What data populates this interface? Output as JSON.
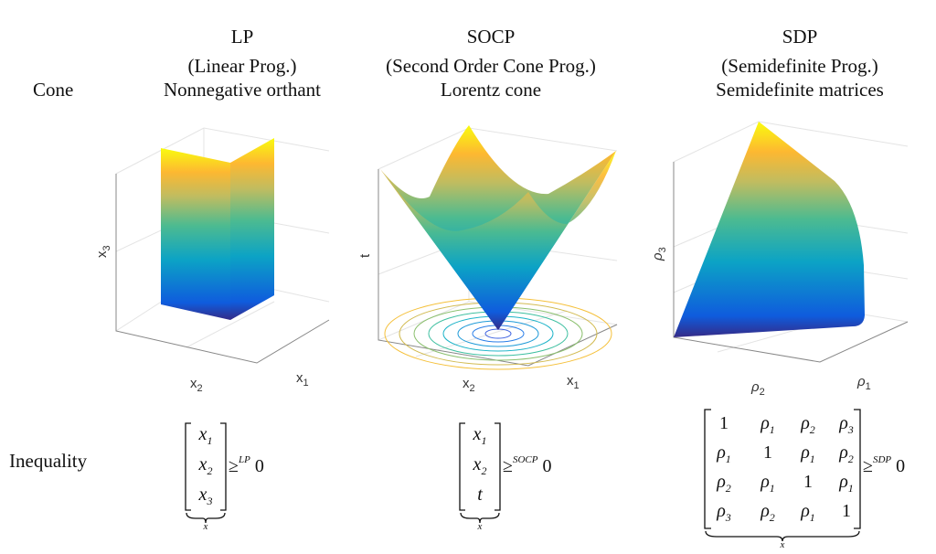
{
  "columns": [
    {
      "name": "LP",
      "full": "(Linear Prog.)",
      "cone": "Nonnegative orthant",
      "axes": {
        "x": "x",
        "x_sub": "1",
        "y": "x",
        "y_sub": "2",
        "z": "x",
        "z_sub": "3"
      }
    },
    {
      "name": "SOCP",
      "full": "(Second Order Cone Prog.)",
      "cone": "Lorentz cone",
      "axes": {
        "x": "x",
        "x_sub": "1",
        "y": "x",
        "y_sub": "2",
        "z": "t",
        "z_sub": ""
      }
    },
    {
      "name": "SDP",
      "full": "(Semidefinite Prog.)",
      "cone": "Semidefinite matrices",
      "axes": {
        "x": "ρ",
        "x_sub": "1",
        "y": "ρ",
        "y_sub": "2",
        "z": "ρ",
        "z_sub": "3"
      }
    }
  ],
  "row_labels": {
    "cone": "Cone",
    "inequality": "Inequality"
  },
  "inequalities": {
    "lp": {
      "entries": [
        [
          "x",
          "1"
        ],
        [
          "x",
          "2"
        ],
        [
          "x",
          "3"
        ]
      ],
      "relation": "≥",
      "superscript": "LP",
      "rhs": "0",
      "brace_label": "x"
    },
    "socp": {
      "entries": [
        [
          "x",
          "1"
        ],
        [
          "x",
          "2"
        ],
        [
          "t",
          ""
        ]
      ],
      "relation": "≥",
      "superscript": "SOCP",
      "rhs": "0",
      "brace_label": "x"
    },
    "sdp": {
      "matrix": [
        [
          "1",
          "ρ1",
          "ρ2",
          "ρ3"
        ],
        [
          "ρ1",
          "1",
          "ρ1",
          "ρ2"
        ],
        [
          "ρ2",
          "ρ1",
          "1",
          "ρ1"
        ],
        [
          "ρ3",
          "ρ2",
          "ρ1",
          "1"
        ]
      ],
      "relation": "≥",
      "superscript": "SDP",
      "rhs": "0",
      "brace_label": "x"
    }
  },
  "colors": {
    "colormap": [
      "#352a87",
      "#0f5cdd",
      "#0ca3c5",
      "#4dbb90",
      "#c0bc60",
      "#fdb831",
      "#f9fb0e"
    ],
    "axis": "#888888",
    "grid": "#e4e4e4"
  }
}
